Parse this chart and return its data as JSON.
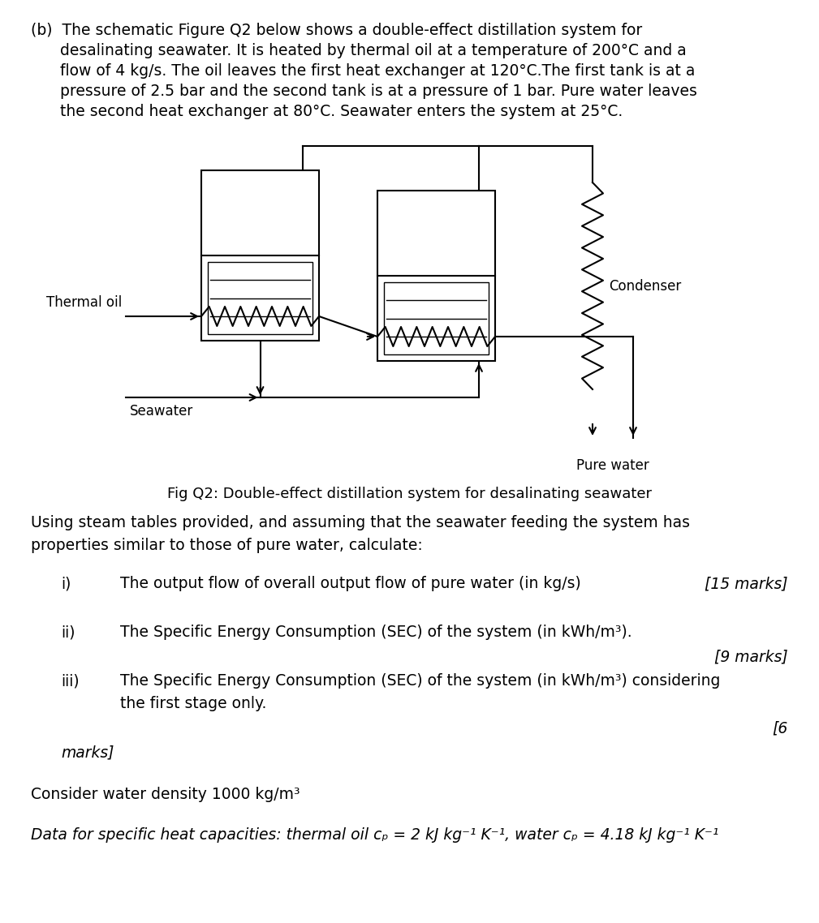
{
  "background_color": "#ffffff",
  "fig_width": 10.09,
  "fig_height": 11.38,
  "dpi": 100,
  "fig_caption": "Fig Q2: Double-effect distillation system for desalinating seawater",
  "label_thermal_oil": "Thermal oil",
  "label_seawater": "Seawater",
  "label_pure_water": "Pure water",
  "label_condenser": "Condenser"
}
